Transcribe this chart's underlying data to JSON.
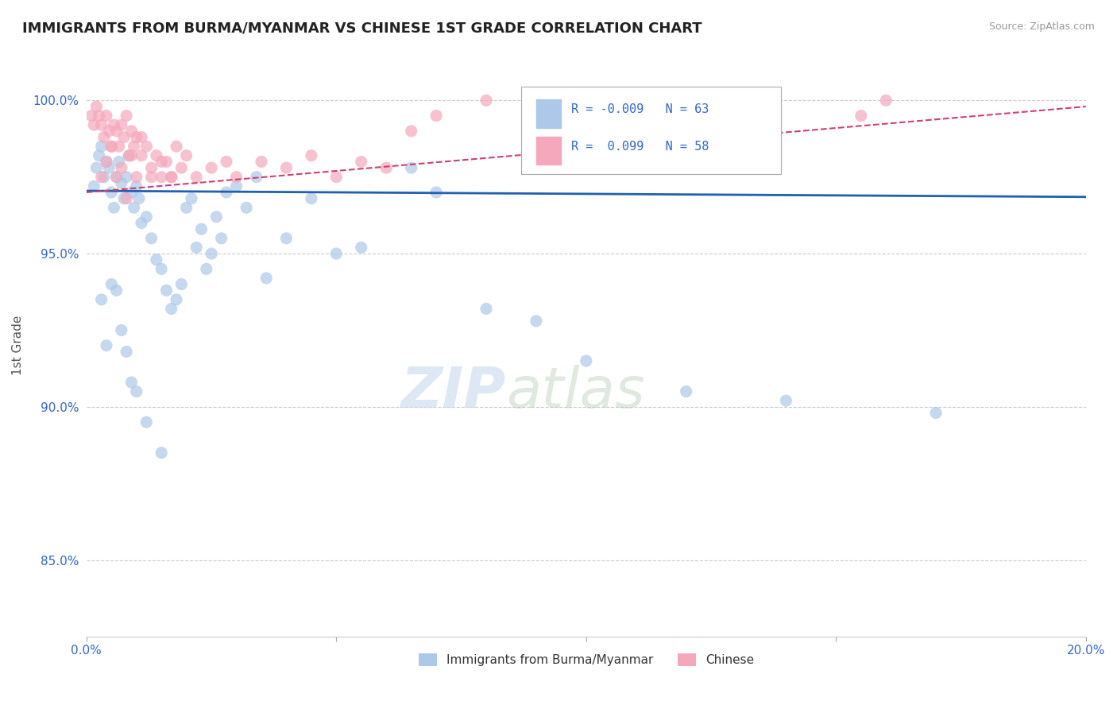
{
  "title": "IMMIGRANTS FROM BURMA/MYANMAR VS CHINESE 1ST GRADE CORRELATION CHART",
  "source": "Source: ZipAtlas.com",
  "ylabel": "1st Grade",
  "xlim": [
    0.0,
    20.0
  ],
  "ylim": [
    82.5,
    101.5
  ],
  "x_ticks": [
    0.0,
    5.0,
    10.0,
    15.0,
    20.0
  ],
  "x_tick_labels": [
    "0.0%",
    "",
    "",
    "",
    "20.0%"
  ],
  "y_ticks": [
    85.0,
    90.0,
    95.0,
    100.0
  ],
  "y_tick_labels": [
    "85.0%",
    "90.0%",
    "95.0%",
    "100.0%"
  ],
  "blue_color": "#adc8e8",
  "pink_color": "#f5a8bc",
  "blue_line_color": "#2060b0",
  "pink_line_color": "#d04070",
  "legend_R_blue": "-0.009",
  "legend_N_blue": "63",
  "legend_R_pink": "0.099",
  "legend_N_pink": "58",
  "legend_label_blue": "Immigrants from Burma/Myanmar",
  "legend_label_pink": "Chinese",
  "watermark_zip": "ZIP",
  "watermark_atlas": "atlas",
  "blue_line_y0": 97.05,
  "blue_line_y1": 96.85,
  "pink_line_y0": 97.0,
  "pink_line_y1": 99.8,
  "blue_scatter_x": [
    0.15,
    0.2,
    0.25,
    0.3,
    0.35,
    0.4,
    0.45,
    0.5,
    0.55,
    0.6,
    0.65,
    0.7,
    0.75,
    0.8,
    0.85,
    0.9,
    0.95,
    1.0,
    1.05,
    1.1,
    1.2,
    1.3,
    1.4,
    1.5,
    1.6,
    1.7,
    1.8,
    1.9,
    2.0,
    2.1,
    2.2,
    2.3,
    2.4,
    2.5,
    2.6,
    2.7,
    2.8,
    3.0,
    3.2,
    3.4,
    3.6,
    4.0,
    4.5,
    5.0,
    5.5,
    6.5,
    7.0,
    8.0,
    9.0,
    10.0,
    12.0,
    14.0,
    17.0,
    0.3,
    0.4,
    0.5,
    0.6,
    0.7,
    0.8,
    0.9,
    1.0,
    1.2,
    1.5
  ],
  "blue_scatter_y": [
    97.2,
    97.8,
    98.2,
    98.5,
    97.5,
    98.0,
    97.8,
    97.0,
    96.5,
    97.5,
    98.0,
    97.3,
    96.8,
    97.5,
    98.2,
    97.0,
    96.5,
    97.2,
    96.8,
    96.0,
    96.2,
    95.5,
    94.8,
    94.5,
    93.8,
    93.2,
    93.5,
    94.0,
    96.5,
    96.8,
    95.2,
    95.8,
    94.5,
    95.0,
    96.2,
    95.5,
    97.0,
    97.2,
    96.5,
    97.5,
    94.2,
    95.5,
    96.8,
    95.0,
    95.2,
    97.8,
    97.0,
    93.2,
    92.8,
    91.5,
    90.5,
    90.2,
    89.8,
    93.5,
    92.0,
    94.0,
    93.8,
    92.5,
    91.8,
    90.8,
    90.5,
    89.5,
    88.5
  ],
  "pink_scatter_x": [
    0.1,
    0.15,
    0.2,
    0.25,
    0.3,
    0.35,
    0.4,
    0.45,
    0.5,
    0.55,
    0.6,
    0.65,
    0.7,
    0.75,
    0.8,
    0.85,
    0.9,
    0.95,
    1.0,
    1.1,
    1.2,
    1.3,
    1.4,
    1.5,
    1.6,
    1.7,
    1.8,
    1.9,
    2.0,
    2.2,
    2.5,
    2.8,
    3.0,
    3.5,
    4.0,
    4.5,
    5.0,
    5.5,
    6.0,
    0.3,
    0.5,
    0.7,
    0.9,
    1.1,
    1.3,
    1.5,
    1.7,
    6.5,
    7.0,
    8.0,
    9.5,
    10.5,
    15.5,
    16.0,
    0.4,
    0.6,
    0.8,
    1.0
  ],
  "pink_scatter_y": [
    99.5,
    99.2,
    99.8,
    99.5,
    99.2,
    98.8,
    99.5,
    99.0,
    98.5,
    99.2,
    99.0,
    98.5,
    99.2,
    98.8,
    99.5,
    98.2,
    99.0,
    98.5,
    98.8,
    98.2,
    98.5,
    97.8,
    98.2,
    97.5,
    98.0,
    97.5,
    98.5,
    97.8,
    98.2,
    97.5,
    97.8,
    98.0,
    97.5,
    98.0,
    97.8,
    98.2,
    97.5,
    98.0,
    97.8,
    97.5,
    98.5,
    97.8,
    98.2,
    98.8,
    97.5,
    98.0,
    97.5,
    99.0,
    99.5,
    100.0,
    99.8,
    99.5,
    99.5,
    100.0,
    98.0,
    97.5,
    96.8,
    97.5
  ]
}
